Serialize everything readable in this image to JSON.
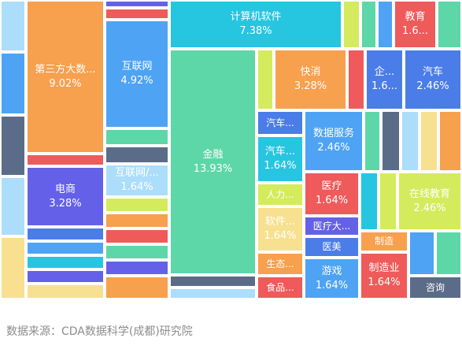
{
  "chart_data": {
    "type": "treemap",
    "items": [
      {
        "name": "金融",
        "value": 13.93,
        "value_label": "13.93%",
        "color": "#5DD6A8"
      },
      {
        "name": "第三方大数...",
        "value": 9.02,
        "value_label": "9.02%",
        "color": "#F7A04E"
      },
      {
        "name": "计算机软件",
        "value": 7.38,
        "value_label": "7.38%",
        "color": "#26C5E0"
      },
      {
        "name": "互联网",
        "value": 4.92,
        "value_label": "4.92%",
        "color": "#4EA3F5"
      },
      {
        "name": "电商",
        "value": 3.28,
        "value_label": "3.28%",
        "color": "#6461E8"
      },
      {
        "name": "快消",
        "value": 3.28,
        "value_label": "3.28%",
        "color": "#F7A04E"
      },
      {
        "name": "汽车",
        "value": 2.46,
        "value_label": "2.46%",
        "color": "#4B7DE8"
      },
      {
        "name": "数据服务",
        "value": 2.46,
        "value_label": "2.46%",
        "color": "#4EA3F5"
      },
      {
        "name": "在线教育",
        "value": 2.46,
        "value_label": "2.46%",
        "color": "#D3EB5C"
      },
      {
        "name": "互联网/...",
        "value": 1.64,
        "value_label": "1.64%",
        "color": "#ACDDFB"
      },
      {
        "name": "汽车...",
        "value": 1.64,
        "value_label": "1.64%",
        "color": "#26C5E0"
      },
      {
        "name": "医疗",
        "value": 1.64,
        "value_label": "1.64%",
        "color": "#EF5A5A"
      },
      {
        "name": "软件...",
        "value": 1.64,
        "value_label": "1.64%",
        "color": "#F7E08F"
      },
      {
        "name": "游戏",
        "value": 1.64,
        "value_label": "1.64%",
        "color": "#4EA3F5"
      },
      {
        "name": "制造业",
        "value": 1.64,
        "value_label": "1.64%",
        "color": "#EF5A5A"
      },
      {
        "name": "教育",
        "value": 1.64,
        "value_label": "1.6...",
        "color": "#EF5A5A"
      },
      {
        "name": "企...",
        "value": 1.64,
        "value_label": "1.6...",
        "color": "#4B7DE8"
      },
      {
        "name": "汽车...",
        "value": 0.82,
        "value_label": "",
        "color": "#4B7DE8"
      },
      {
        "name": "人力...",
        "value": 0.82,
        "value_label": "",
        "color": "#D3EB5C"
      },
      {
        "name": "生态...",
        "value": 0.82,
        "value_label": "",
        "color": "#F7A04E"
      },
      {
        "name": "食品...",
        "value": 0.82,
        "value_label": "",
        "color": "#EF5A5A"
      },
      {
        "name": "医疗大...",
        "value": 0.82,
        "value_label": "",
        "color": "#6461E8"
      },
      {
        "name": "医美",
        "value": 0.82,
        "value_label": "",
        "color": "#4B7DE8"
      },
      {
        "name": "制造",
        "value": 0.82,
        "value_label": "",
        "color": "#F7A04E"
      },
      {
        "name": "咨询",
        "value": 0.82,
        "value_label": "",
        "color": "#5B6C88"
      }
    ]
  },
  "source_text": "数据来源：CDA数据科学(成都)研究院"
}
